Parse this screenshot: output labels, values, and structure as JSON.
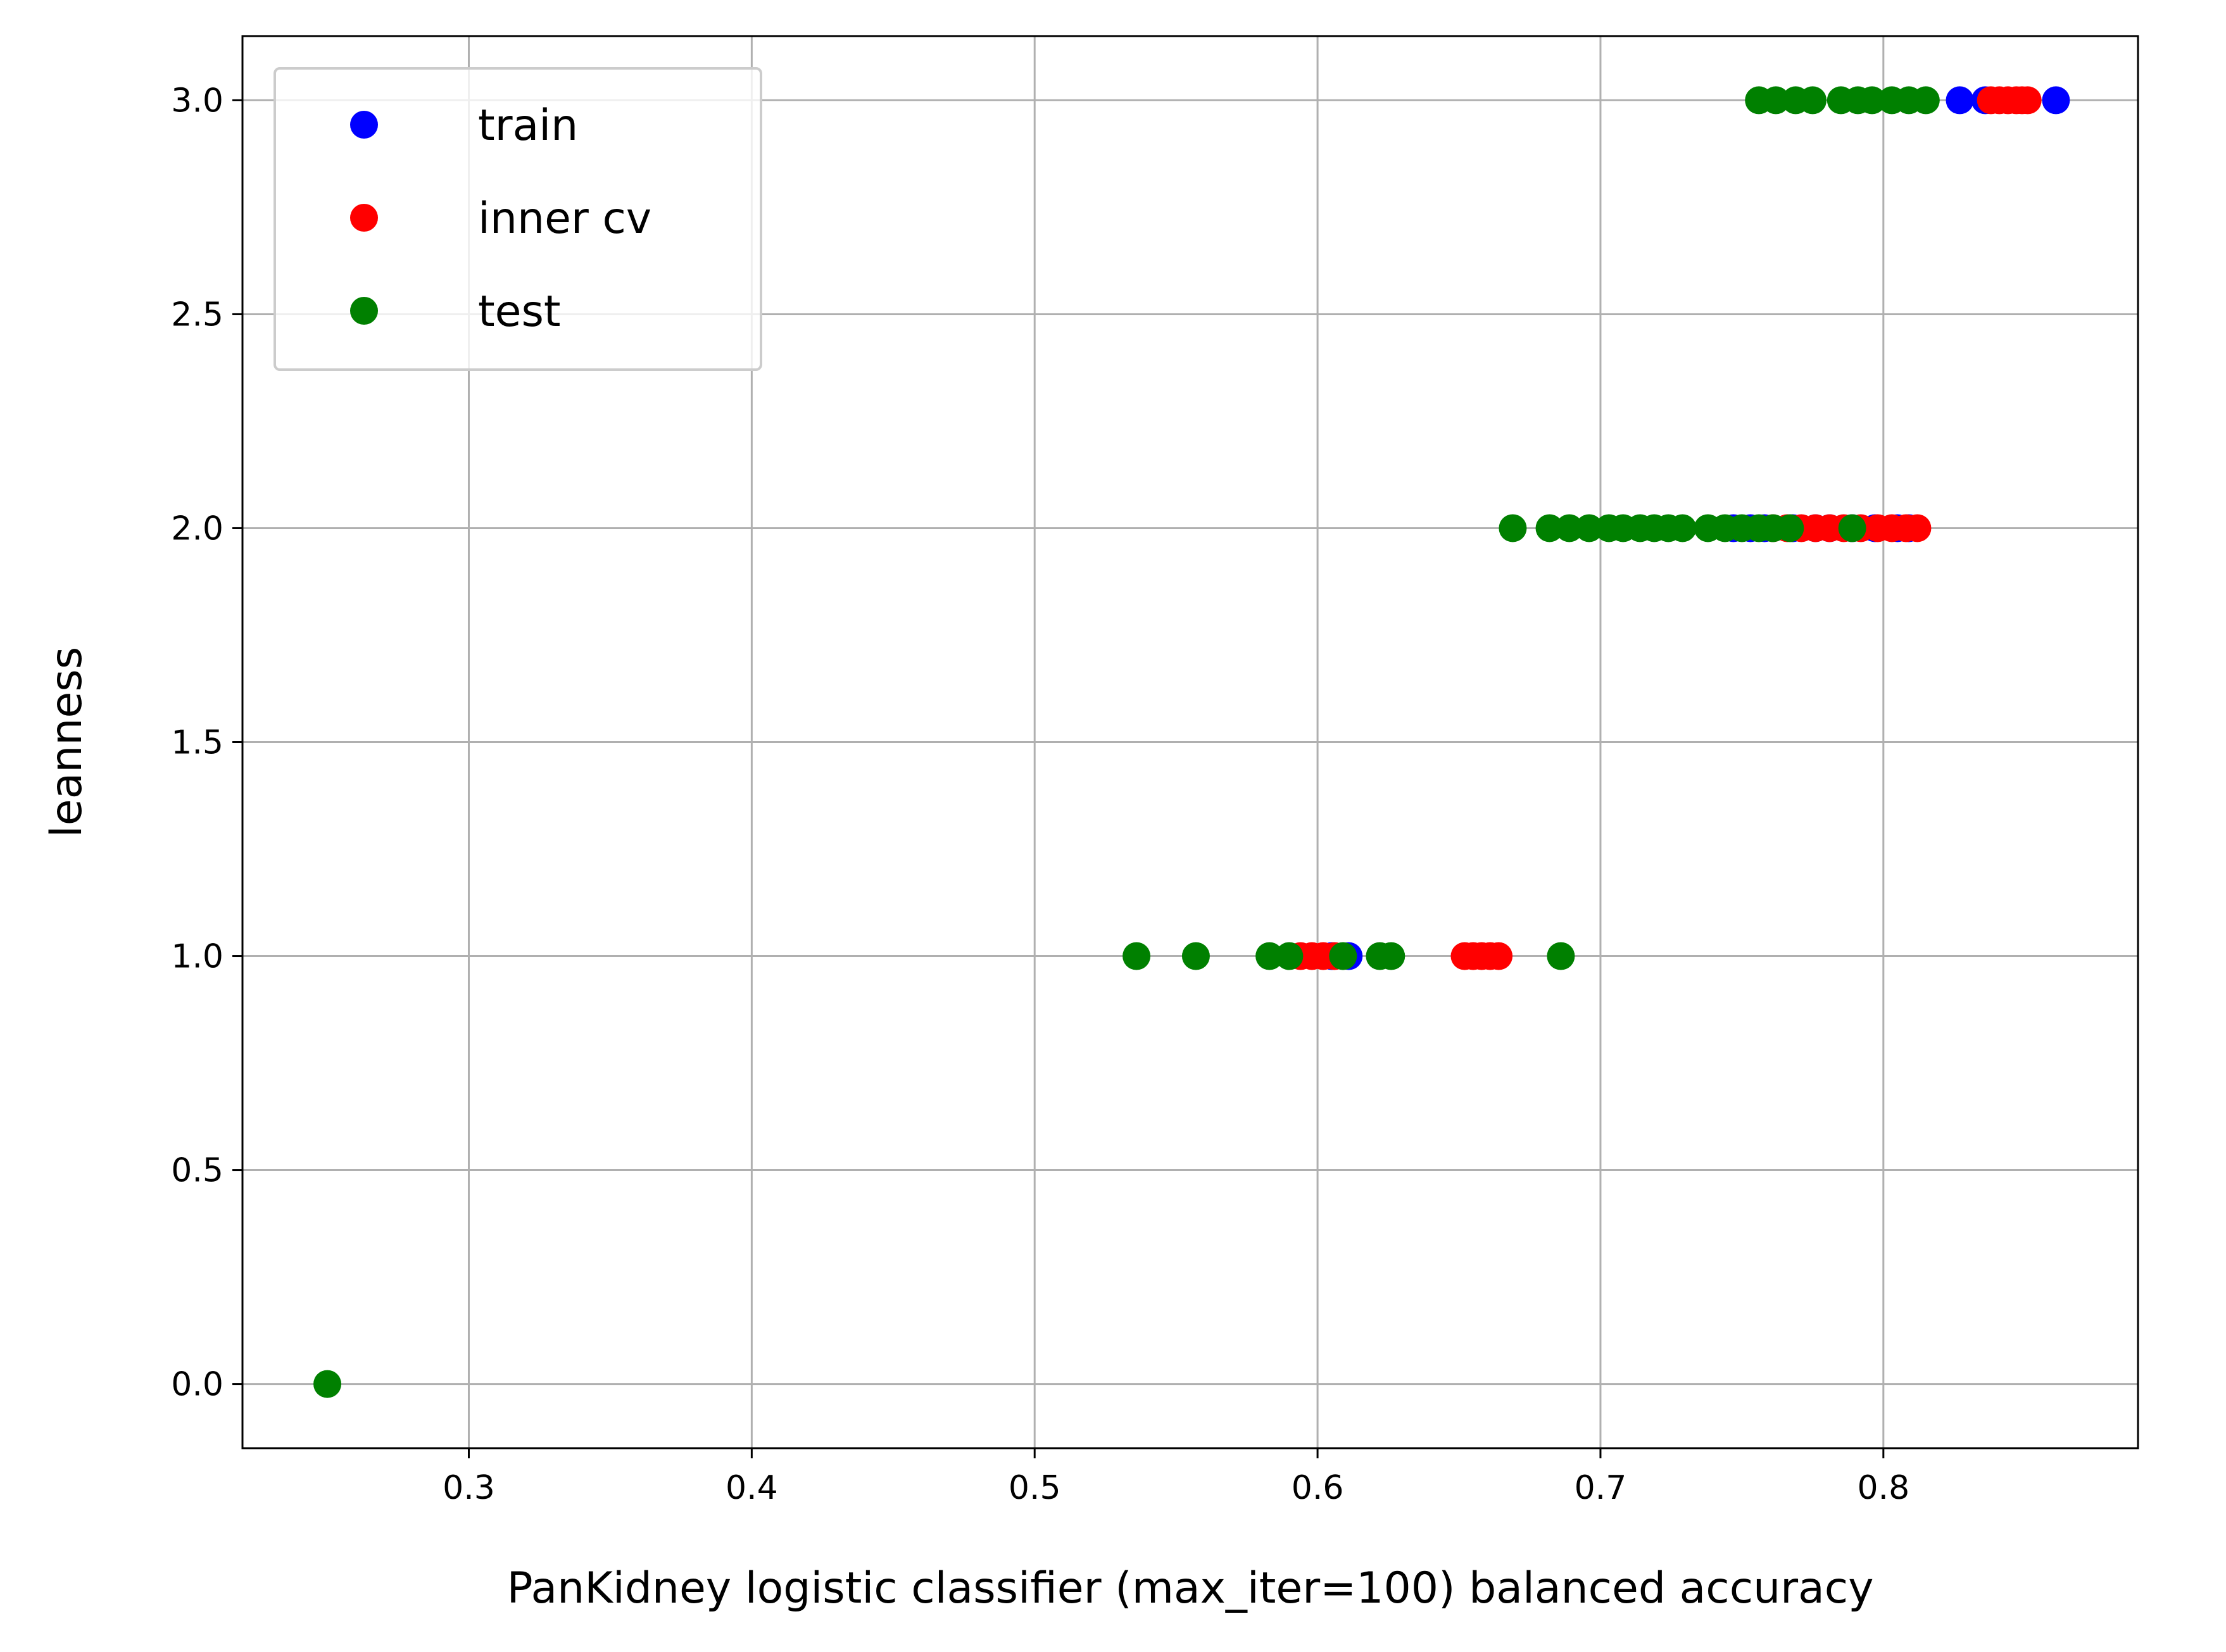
{
  "chart_data": {
    "type": "scatter",
    "title": "",
    "xlabel": "PanKidney logistic classifier (max_iter=100) balanced accuracy",
    "ylabel": "leanness",
    "xlim": [
      0.22,
      0.89
    ],
    "ylim": [
      -0.15,
      3.15
    ],
    "xticks": [
      0.3,
      0.4,
      0.5,
      0.6,
      0.7,
      0.8
    ],
    "xtick_labels": [
      "0.3",
      "0.4",
      "0.5",
      "0.6",
      "0.7",
      "0.8"
    ],
    "yticks": [
      0.0,
      0.5,
      1.0,
      1.5,
      2.0,
      2.5,
      3.0
    ],
    "ytick_labels": [
      "0.0",
      "0.5",
      "1.0",
      "1.5",
      "2.0",
      "2.5",
      "3.0"
    ],
    "grid": true,
    "legend_position": "top-left",
    "series": [
      {
        "name": "train",
        "color": "#0000ff",
        "points": [
          [
            0.827,
            3
          ],
          [
            0.836,
            3
          ],
          [
            0.861,
            3
          ],
          [
            0.747,
            2
          ],
          [
            0.753,
            2
          ],
          [
            0.758,
            2
          ],
          [
            0.768,
            2
          ],
          [
            0.776,
            2
          ],
          [
            0.781,
            2
          ],
          [
            0.789,
            2
          ],
          [
            0.797,
            2
          ],
          [
            0.805,
            2
          ],
          [
            0.809,
            2
          ],
          [
            0.611,
            1
          ],
          [
            0.605,
            1
          ]
        ]
      },
      {
        "name": "inner cv",
        "color": "#ff0000",
        "points": [
          [
            0.838,
            3
          ],
          [
            0.841,
            3
          ],
          [
            0.844,
            3
          ],
          [
            0.847,
            3
          ],
          [
            0.849,
            3
          ],
          [
            0.851,
            3
          ],
          [
            0.761,
            2
          ],
          [
            0.766,
            2
          ],
          [
            0.771,
            2
          ],
          [
            0.776,
            2
          ],
          [
            0.781,
            2
          ],
          [
            0.786,
            2
          ],
          [
            0.792,
            2
          ],
          [
            0.798,
            2
          ],
          [
            0.803,
            2
          ],
          [
            0.808,
            2
          ],
          [
            0.812,
            2
          ],
          [
            0.594,
            1
          ],
          [
            0.598,
            1
          ],
          [
            0.602,
            1
          ],
          [
            0.606,
            1
          ],
          [
            0.652,
            1
          ],
          [
            0.655,
            1
          ],
          [
            0.658,
            1
          ],
          [
            0.661,
            1
          ],
          [
            0.664,
            1
          ]
        ]
      },
      {
        "name": "test",
        "color": "#008000",
        "points": [
          [
            0.756,
            3
          ],
          [
            0.762,
            3
          ],
          [
            0.769,
            3
          ],
          [
            0.775,
            3
          ],
          [
            0.785,
            3
          ],
          [
            0.791,
            3
          ],
          [
            0.796,
            3
          ],
          [
            0.803,
            3
          ],
          [
            0.809,
            3
          ],
          [
            0.815,
            3
          ],
          [
            0.669,
            2
          ],
          [
            0.682,
            2
          ],
          [
            0.689,
            2
          ],
          [
            0.696,
            2
          ],
          [
            0.703,
            2
          ],
          [
            0.708,
            2
          ],
          [
            0.714,
            2
          ],
          [
            0.719,
            2
          ],
          [
            0.724,
            2
          ],
          [
            0.729,
            2
          ],
          [
            0.738,
            2
          ],
          [
            0.744,
            2
          ],
          [
            0.75,
            2
          ],
          [
            0.756,
            2
          ],
          [
            0.761,
            2
          ],
          [
            0.767,
            2
          ],
          [
            0.789,
            2
          ],
          [
            0.536,
            1
          ],
          [
            0.557,
            1
          ],
          [
            0.583,
            1
          ],
          [
            0.59,
            1
          ],
          [
            0.609,
            1
          ],
          [
            0.622,
            1
          ],
          [
            0.626,
            1
          ],
          [
            0.686,
            1
          ],
          [
            0.25,
            0
          ]
        ]
      }
    ]
  }
}
